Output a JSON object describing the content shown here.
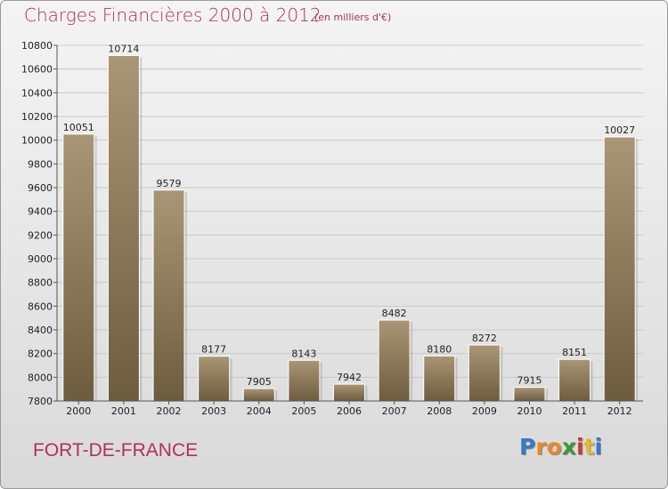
{
  "header": {
    "title": "Charges Financières 2000 à 2012",
    "unit": "(en milliers d'€)"
  },
  "footer": {
    "city": "FORT-DE-FRANCE",
    "logo_letters": [
      "P",
      "r",
      "o",
      "x",
      "i",
      "t",
      "i"
    ],
    "logo_colors": [
      "#3a78c8",
      "#e8892a",
      "#e8892a",
      "#3a9a3a",
      "#c83a3a",
      "#e8b82a",
      "#3a78c8"
    ]
  },
  "colors": {
    "bar_top": "#a89676",
    "bar_bottom": "#6e5c3e",
    "grid": "#c9c9c9",
    "accent": "#b0305a"
  },
  "chart_data": {
    "type": "bar",
    "categories": [
      "2000",
      "2001",
      "2002",
      "2003",
      "2004",
      "2005",
      "2006",
      "2007",
      "2008",
      "2009",
      "2010",
      "2011",
      "2012"
    ],
    "values": [
      10051,
      10714,
      9579,
      8177,
      7905,
      8143,
      7942,
      8482,
      8180,
      8272,
      7915,
      8151,
      10027
    ],
    "value_labels": [
      "10051",
      "10714",
      "9579",
      "8177",
      "7905",
      "8143",
      "7942",
      "8482",
      "8180",
      "8272",
      "7915",
      "8151",
      "10027"
    ],
    "title": "Charges Financières 2000 à 2012",
    "xlabel": "",
    "ylabel": "",
    "ylim": [
      7800,
      10800
    ],
    "yticks": [
      7800,
      8000,
      8200,
      8400,
      8600,
      8800,
      9000,
      9200,
      9400,
      9600,
      9800,
      10000,
      10200,
      10400,
      10600,
      10800
    ],
    "ytick_labels": [
      "7800",
      "8000",
      "8200",
      "8400",
      "8600",
      "8800",
      "9000",
      "9200",
      "9400",
      "9600",
      "9800",
      "10000",
      "10200",
      "10400",
      "10600",
      "10800"
    ],
    "grid": true,
    "legend": "none"
  }
}
